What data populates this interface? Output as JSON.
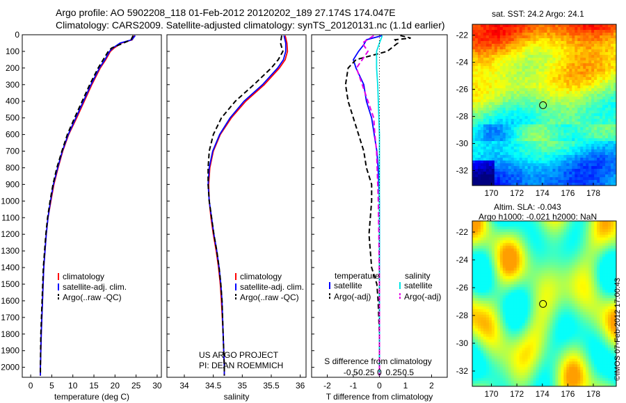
{
  "header": {
    "line1": "Argo profile: AO 5902208_118 01-Feb-2012 20120202_189 27.174S 174.047E",
    "line2": "Climatology: CARS2009. Satellite-adjusted climatology: synTS_20120131.nc (1.1d earlier)"
  },
  "credit": {
    "project": "US ARGO PROJECT",
    "pi": "PI: DEAN ROEMMICH",
    "stamp": "©IMOS 07-Feb-2012 17:00:43"
  },
  "colors": {
    "climatology": "#ff0000",
    "satellite": "#0000ff",
    "argo": "#000000",
    "satellite_s": "#00e5e5",
    "argo_s": "#e600e6"
  },
  "chart_data": [
    {
      "type": "line",
      "id": "temperature",
      "xlabel": "temperature (deg C)",
      "xlim": [
        -2,
        31
      ],
      "xticks": [
        0,
        5,
        10,
        15,
        20,
        25,
        30
      ],
      "ylim": [
        2060,
        0
      ],
      "yticks": [
        0,
        100,
        200,
        300,
        400,
        500,
        600,
        700,
        800,
        900,
        1000,
        1100,
        1200,
        1300,
        1400,
        1500,
        1600,
        1700,
        1800,
        1900,
        2000
      ],
      "legend": [
        "climatology",
        "satellite-adj. clim.",
        "Argo(..raw -QC)"
      ],
      "series": [
        {
          "name": "climatology",
          "color": "red",
          "depth": [
            5,
            30,
            50,
            80,
            100,
            150,
            200,
            300,
            400,
            500,
            600,
            700,
            800,
            900,
            1000,
            1100,
            1200,
            1400,
            1600,
            1800,
            2000,
            2050
          ],
          "values": [
            24.6,
            24.1,
            21.5,
            19.8,
            18.9,
            17.8,
            16.5,
            14.5,
            12.7,
            10.9,
            9.0,
            7.6,
            6.5,
            5.5,
            4.8,
            4.1,
            3.7,
            3.1,
            2.8,
            2.5,
            2.3,
            2.3
          ]
        },
        {
          "name": "satellite-adj. clim.",
          "color": "blue",
          "depth": [
            5,
            30,
            50,
            80,
            100,
            150,
            200,
            300,
            400,
            500,
            600,
            700,
            800,
            900,
            1000,
            1100,
            1200,
            1400,
            1600,
            1800,
            2000,
            2050
          ],
          "values": [
            24.8,
            24.0,
            21.2,
            19.5,
            18.7,
            17.6,
            16.3,
            14.3,
            12.5,
            10.7,
            8.9,
            7.5,
            6.4,
            5.4,
            4.7,
            4.1,
            3.7,
            3.1,
            2.8,
            2.5,
            2.3,
            2.3
          ]
        },
        {
          "name": "Argo(..raw -QC)",
          "color": "black",
          "depth": [
            5,
            30,
            50,
            80,
            100,
            150,
            200,
            300,
            400,
            500,
            600,
            700,
            800,
            900,
            1000,
            1100,
            1200,
            1400,
            1600,
            1800,
            2000,
            2050
          ],
          "values": [
            24.3,
            23.8,
            22.0,
            19.2,
            18.4,
            17.2,
            16.0,
            14.0,
            12.2,
            10.4,
            8.7,
            7.4,
            6.2,
            5.3,
            4.6,
            4.0,
            3.6,
            3.0,
            2.7,
            2.4,
            2.3,
            2.3
          ]
        }
      ]
    },
    {
      "type": "line",
      "id": "salinity",
      "xlabel": "salinity",
      "xlim": [
        33.7,
        36.1
      ],
      "xticks": [
        34,
        34.5,
        35,
        35.5,
        36
      ],
      "ylim": [
        2060,
        0
      ],
      "legend": [
        "climatology",
        "satellite-adj. clim.",
        "Argo(..raw -QC)"
      ],
      "series": [
        {
          "name": "climatology",
          "color": "red",
          "depth": [
            5,
            50,
            100,
            150,
            200,
            300,
            400,
            500,
            600,
            700,
            800,
            900,
            1000,
            1100,
            1200,
            1300,
            1400,
            1500,
            1600,
            1800,
            2000,
            2050
          ],
          "values": [
            35.74,
            35.77,
            35.78,
            35.74,
            35.64,
            35.38,
            35.06,
            34.81,
            34.62,
            34.5,
            34.44,
            34.42,
            34.43,
            34.46,
            34.5,
            34.55,
            34.59,
            34.62,
            34.64,
            34.67,
            34.69,
            34.69
          ]
        },
        {
          "name": "satellite-adj. clim.",
          "color": "blue",
          "depth": [
            5,
            50,
            100,
            150,
            200,
            300,
            400,
            500,
            600,
            700,
            800,
            900,
            1000,
            1100,
            1200,
            1300,
            1400,
            1500,
            1600,
            1800,
            2000,
            2050
          ],
          "values": [
            35.72,
            35.75,
            35.75,
            35.71,
            35.61,
            35.35,
            35.03,
            34.79,
            34.61,
            34.49,
            34.43,
            34.41,
            34.43,
            34.47,
            34.51,
            34.56,
            34.6,
            34.63,
            34.65,
            34.67,
            34.69,
            34.69
          ]
        },
        {
          "name": "Argo(..raw -QC)",
          "color": "black",
          "depth": [
            5,
            50,
            100,
            150,
            200,
            300,
            400,
            500,
            600,
            700,
            800,
            900,
            1000,
            1100,
            1200,
            1300,
            1400,
            1500,
            1600,
            1800,
            2000,
            2050
          ],
          "values": [
            35.68,
            35.66,
            35.7,
            35.62,
            35.5,
            35.2,
            34.88,
            34.64,
            34.5,
            34.43,
            34.41,
            34.41,
            34.43,
            34.47,
            34.51,
            34.56,
            34.6,
            34.63,
            34.65,
            34.67,
            34.69,
            34.69
          ]
        }
      ]
    },
    {
      "type": "line",
      "id": "difference",
      "xlabel": "T difference from climatology",
      "xlabel_top": "S difference from climatology",
      "xlim": [
        -2.6,
        2.6
      ],
      "xticks": [
        -2,
        -1,
        0,
        1,
        2
      ],
      "xticks_s": [
        "-0.5",
        "-0.25",
        "0",
        "0.25",
        "0.5"
      ],
      "ylim": [
        2060,
        0
      ],
      "legend_t_title": "temperature",
      "legend_s_title": "salinity",
      "legend": [
        "satellite",
        "Argo(-adj)",
        "satellite",
        "Argo(-adj)"
      ],
      "series": [
        {
          "name": "T satellite",
          "color": "blue",
          "depth": [
            5,
            30,
            60,
            100,
            150,
            200,
            300,
            400,
            500,
            600,
            700,
            800,
            1000,
            1500,
            2050
          ],
          "values": [
            0.1,
            -0.5,
            -0.6,
            -0.8,
            -1.0,
            -0.9,
            -0.6,
            -0.5,
            -0.3,
            -0.2,
            -0.1,
            -0.05,
            0,
            0,
            0
          ]
        },
        {
          "name": "T Argo(-adj)",
          "color": "black",
          "depth": [
            5,
            20,
            30,
            50,
            100,
            150,
            200,
            300,
            400,
            500,
            600,
            700,
            800,
            900,
            1000,
            1200,
            1400,
            1500,
            1600,
            1800,
            2050
          ],
          "values": [
            0.8,
            1.2,
            0.6,
            0.7,
            0.3,
            -0.9,
            -1.2,
            -1.3,
            -1.2,
            -1.0,
            -0.8,
            -0.6,
            -0.5,
            -0.3,
            -0.3,
            -0.4,
            -0.3,
            -0.1,
            -0.05,
            0,
            0
          ]
        },
        {
          "name": "S satellite",
          "color": "cyan",
          "depth": [
            5,
            50,
            100,
            200,
            300,
            400,
            500,
            600,
            800,
            1000,
            1500,
            2050
          ],
          "values": [
            0.05,
            0.0,
            -0.05,
            -0.05,
            -0.03,
            -0.02,
            -0.01,
            0,
            0,
            0,
            0,
            0
          ]
        },
        {
          "name": "S Argo(-adj)",
          "color": "magenta",
          "depth": [
            5,
            50,
            100,
            200,
            300,
            400,
            500,
            600,
            700,
            800,
            1000,
            1200,
            1500,
            2050
          ],
          "values": [
            -0.1,
            -0.3,
            -0.2,
            -0.4,
            -0.3,
            -0.2,
            -0.1,
            -0.08,
            -0.05,
            -0.04,
            -0.02,
            -0.01,
            0,
            0
          ]
        }
      ]
    },
    {
      "type": "heatmap",
      "id": "sst-map",
      "title": "sat. SST: 24.2 Argo: 24.1",
      "xticks": [
        "170",
        "172",
        "174",
        "176",
        "178"
      ],
      "yticks": [
        "-22",
        "-24",
        "-26",
        "-28",
        "-30",
        "-32"
      ],
      "xlim": [
        168.5,
        179.8
      ],
      "ylim": [
        -33.1,
        -21.2
      ],
      "marker": {
        "lon": 174.05,
        "lat": -27.17
      }
    },
    {
      "type": "heatmap",
      "id": "sla-map",
      "title_line1": "Altim. SLA: -0.043",
      "title_line2": "Argo h1000: -0.021 h2000: NaN",
      "xticks": [
        "170",
        "172",
        "174",
        "176",
        "178"
      ],
      "yticks": [
        "-22",
        "-24",
        "-26",
        "-28",
        "-30",
        "-32"
      ],
      "xlim": [
        168.5,
        179.8
      ],
      "ylim": [
        -33.1,
        -21.2
      ],
      "marker": {
        "lon": 174.05,
        "lat": -27.17
      }
    }
  ]
}
